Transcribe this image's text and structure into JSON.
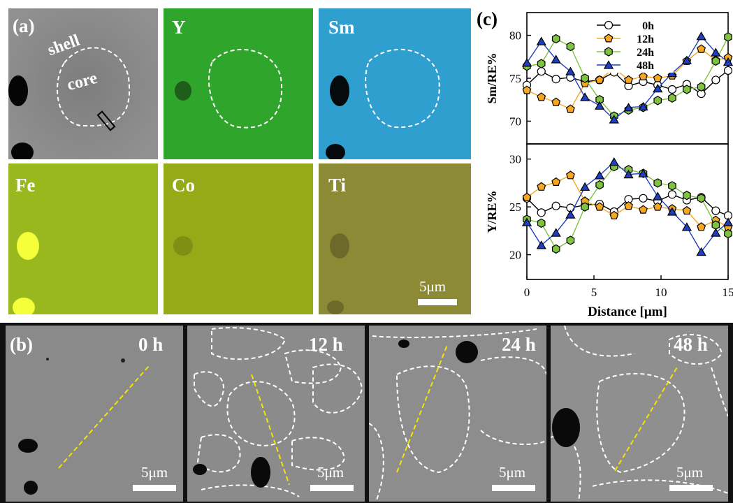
{
  "figure": {
    "panel_a": {
      "label": "(a)",
      "maps": [
        {
          "label": "",
          "color": "#808080"
        },
        {
          "label": "Y",
          "color": "#2fa52c"
        },
        {
          "label": "Sm",
          "color": "#2f9fd0"
        },
        {
          "label": "Fe",
          "color": "#98b81e"
        },
        {
          "label": "Co",
          "color": "#94ab17"
        },
        {
          "label": "Ti",
          "color": "#8d8a36"
        }
      ],
      "shell_label": "shell",
      "core_label": "core",
      "scale_label": "5μm"
    },
    "panel_b": {
      "label": "(b)",
      "images": [
        {
          "time": "0 h",
          "scale": "5μm"
        },
        {
          "time": "12 h",
          "scale": "5μm"
        },
        {
          "time": "24 h",
          "scale": "5μm"
        },
        {
          "time": "48 h",
          "scale": "5μm"
        }
      ]
    },
    "panel_c": {
      "label": "(c)"
    }
  },
  "chart_data": {
    "type": "line",
    "x": [
      0,
      1.08,
      2.17,
      3.25,
      4.33,
      5.42,
      6.5,
      7.58,
      8.67,
      9.75,
      10.83,
      11.92,
      13,
      14.08,
      15
    ],
    "xlabel": "Distance [μm]",
    "xlim": [
      0,
      15
    ],
    "xticks": [
      0,
      5,
      10,
      15
    ],
    "legend_position": "top-center",
    "subplots": [
      {
        "ylabel": "Sm/RE%",
        "ylim": [
          68,
          82
        ],
        "yticks": [
          70,
          75,
          80
        ],
        "series": [
          {
            "name": "0h",
            "color": "#ffffff",
            "stroke": "#000000",
            "marker": "circle",
            "values": [
              74.2,
              75.8,
              74.9,
              75.1,
              74.6,
              74.8,
              75.7,
              74.1,
              74.6,
              74.2,
              73.7,
              74.3,
              73.2,
              74.8,
              75.9
            ]
          },
          {
            "name": "12h",
            "color": "#f5a623",
            "stroke": "#000000",
            "marker": "pentagon",
            "values": [
              73.6,
              72.8,
              72.2,
              71.4,
              74.4,
              74.8,
              76.2,
              74.8,
              75.2,
              75.0,
              75.3,
              77.0,
              78.4,
              77.1,
              77.4
            ]
          },
          {
            "name": "24h",
            "color": "#7fc241",
            "stroke": "#000000",
            "marker": "hexagon",
            "values": [
              76.4,
              76.7,
              79.6,
              78.7,
              75.0,
              72.5,
              70.6,
              71.3,
              71.6,
              72.4,
              72.7,
              73.7,
              74.0,
              77.0,
              79.8
            ]
          },
          {
            "name": "48h",
            "color": "#1f3fbf",
            "stroke": "#000000",
            "marker": "triangle",
            "values": [
              76.8,
              79.3,
              77.2,
              75.8,
              72.8,
              71.8,
              70.2,
              71.6,
              71.7,
              73.8,
              75.6,
              77.1,
              79.9,
              78.0,
              76.9
            ]
          }
        ]
      },
      {
        "ylabel": "Y/RE%",
        "ylim": [
          18,
          31
        ],
        "yticks": [
          20,
          25,
          30
        ],
        "series": [
          {
            "name": "0h",
            "color": "#ffffff",
            "stroke": "#000000",
            "marker": "circle",
            "values": [
              25.9,
              24.4,
              25.1,
              24.9,
              25.2,
              25.3,
              24.5,
              25.8,
              25.9,
              25.6,
              26.3,
              25.7,
              26.0,
              24.6,
              24.1
            ]
          },
          {
            "name": "12h",
            "color": "#f5a623",
            "stroke": "#000000",
            "marker": "pentagon",
            "values": [
              26.0,
              27.1,
              27.6,
              28.3,
              25.6,
              25.0,
              24.1,
              25.1,
              24.7,
              25.0,
              24.8,
              24.6,
              22.9,
              23.6,
              22.9
            ]
          },
          {
            "name": "24h",
            "color": "#7fc241",
            "stroke": "#000000",
            "marker": "hexagon",
            "values": [
              23.7,
              23.3,
              20.6,
              21.5,
              25.0,
              27.3,
              29.2,
              28.9,
              28.5,
              27.5,
              27.2,
              26.2,
              25.9,
              23.1,
              22.2
            ]
          },
          {
            "name": "48h",
            "color": "#1f3fbf",
            "stroke": "#000000",
            "marker": "triangle",
            "values": [
              23.4,
              21.0,
              22.3,
              24.2,
              27.1,
              28.3,
              29.7,
              28.4,
              28.5,
              26.1,
              24.5,
              22.9,
              20.3,
              22.3,
              23.4
            ]
          }
        ]
      }
    ]
  }
}
